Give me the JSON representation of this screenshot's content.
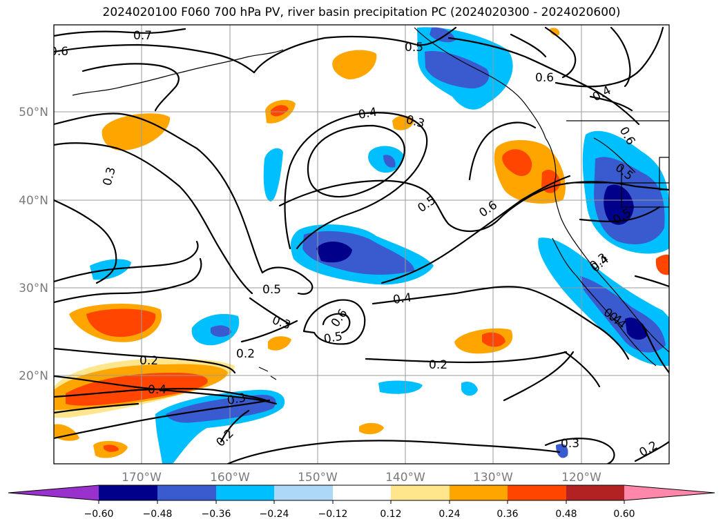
{
  "title": "2024020100 F060 700 hPa PV, river basin precipitation PC (2024020300 - 2024020600)",
  "map": {
    "lon_range": [
      -180,
      -110
    ],
    "lat_range": [
      10,
      60
    ],
    "lat_labels": [
      "50°N",
      "40°N",
      "30°N",
      "20°N"
    ],
    "lon_labels": [
      "170°W",
      "160°W",
      "150°W",
      "140°W",
      "130°W",
      "120°W"
    ]
  },
  "contour_labels": [
    "0.7",
    "0.6",
    "0.5",
    "0.6",
    "0.4",
    "0.4",
    "0.3",
    "0.3",
    "0.5",
    "0.4",
    "0.5",
    "0.6",
    "0.6",
    "0.5",
    "0.3",
    "0.4",
    "0.4",
    "0.5",
    "0.3",
    "0.6",
    "0.5",
    "0.4",
    "0.2",
    "0.2",
    "0.2",
    "0.4",
    "0.3",
    "0.2",
    "0.3",
    "0.2"
  ],
  "colorbar": {
    "ticks": [
      "−0.60",
      "−0.48",
      "−0.36",
      "−0.24",
      "−0.12",
      "0.12",
      "0.24",
      "0.36",
      "0.48",
      "0.60"
    ],
    "colors": [
      "#9932cc",
      "#00008b",
      "#3a5bd0",
      "#00bfff",
      "#add8f6",
      "#ffffff",
      "#ffe68c",
      "#ffa500",
      "#ff4500",
      "#b22222",
      "#ff88aa"
    ]
  }
}
